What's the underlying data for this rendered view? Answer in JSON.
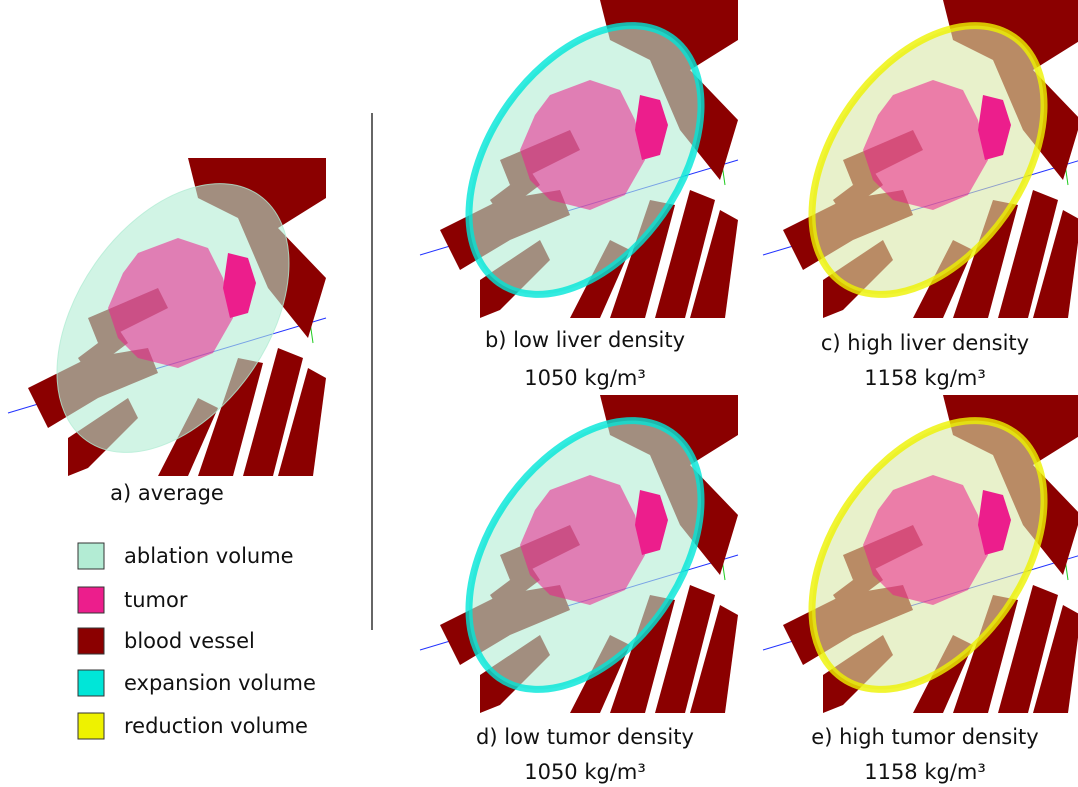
{
  "panels": [
    {
      "caption": [
        "a) average"
      ],
      "variant": "average"
    },
    {
      "caption": [
        "b) low liver density",
        "1050  kg/m³"
      ],
      "variant": "expansion"
    },
    {
      "caption": [
        "c) high liver density",
        "1158 kg/m³"
      ],
      "variant": "reduction"
    },
    {
      "caption": [
        "d) low tumor density",
        "1050 kg/m³"
      ],
      "variant": "expansion"
    },
    {
      "caption": [
        "e) high tumor density",
        "1158 kg/m³"
      ],
      "variant": "reduction"
    }
  ],
  "legend": [
    {
      "label": "ablation volume",
      "color": "#b3ecd4"
    },
    {
      "label": "tumor",
      "color": "#ec1e8c"
    },
    {
      "label": "blood vessel",
      "color": "#8b0000"
    },
    {
      "label": "expansion volume",
      "color": "#00e6d8"
    },
    {
      "label": "reduction volume",
      "color": "#eef200"
    }
  ]
}
